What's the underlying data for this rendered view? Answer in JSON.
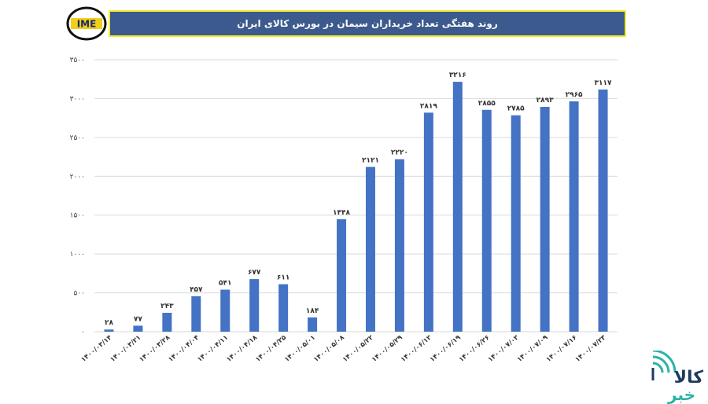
{
  "header": {
    "title": "روند هفتگی تعداد خریداران سیمان در بورس کالای ایران",
    "logo_text": "IME"
  },
  "watermark": {
    "line1": "کالا",
    "line2": "خبر"
  },
  "colors": {
    "bar": "#4472c4",
    "title_bg": "#3c5a8d",
    "title_border": "#f2ef2a",
    "grid": "#d9d9d9"
  },
  "chart_data": {
    "type": "bar",
    "title": "روند هفتگی تعداد خریداران سیمان در بورس کالای ایران",
    "categories": [
      "۱۴۰۰/۰۳/۱۴",
      "۱۴۰۰/۰۳/۲۱",
      "۱۴۰۰/۰۳/۲۸",
      "۱۴۰۰/۰۴/۰۴",
      "۱۴۰۰/۰۴/۱۱",
      "۱۴۰۰/۰۴/۱۸",
      "۱۴۰۰/۰۴/۲۵",
      "۱۴۰۰/۰۵/۰۱",
      "۱۴۰۰/۰۵/۰۸",
      "۱۴۰۰/۰۵/۲۲",
      "۱۴۰۰/۰۵/۲۹",
      "۱۴۰۰/۰۶/۱۲",
      "۱۴۰۰/۰۶/۱۹",
      "۱۴۰۰/۰۶/۲۶",
      "۱۴۰۰/۰۷/۰۲",
      "۱۴۰۰/۰۷/۰۹",
      "۱۴۰۰/۰۷/۱۶",
      "۱۴۰۰/۰۷/۲۳"
    ],
    "values": [
      28,
      77,
      243,
      457,
      541,
      677,
      611,
      184,
      1448,
      2121,
      2220,
      2819,
      3216,
      2855,
      2785,
      2893,
      2965,
      3117
    ],
    "value_labels": [
      "۲۸",
      "۷۷",
      "۲۴۳",
      "۴۵۷",
      "۵۴۱",
      "۶۷۷",
      "۶۱۱",
      "۱۸۴",
      "۱۴۴۸",
      "۲۱۲۱",
      "۲۲۲۰",
      "۲۸۱۹",
      "۳۲۱۶",
      "۲۸۵۵",
      "۲۷۸۵",
      "۲۸۹۳",
      "۲۹۶۵",
      "۳۱۱۷"
    ],
    "ylim": [
      0,
      3500
    ],
    "yticks": [
      0,
      500,
      1000,
      1500,
      2000,
      2500,
      3000,
      3500
    ],
    "ytick_labels": [
      "۰",
      "۵۰۰",
      "۱۰۰۰",
      "۱۵۰۰",
      "۲۰۰۰",
      "۲۵۰۰",
      "۳۰۰۰",
      "۳۵۰۰"
    ],
    "grid": true,
    "xlabel": "",
    "ylabel": ""
  }
}
